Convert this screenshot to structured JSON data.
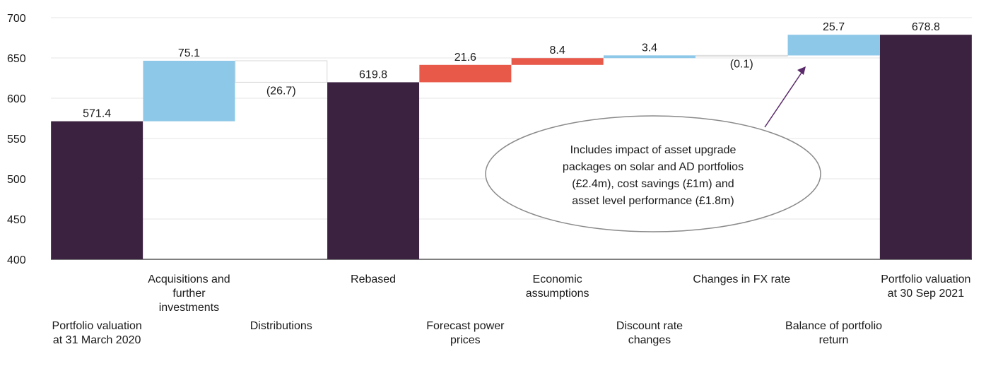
{
  "chart_data": {
    "type": "waterfall",
    "ylim": [
      400,
      700
    ],
    "yticks": [
      400,
      450,
      500,
      550,
      600,
      650,
      700
    ],
    "grid": true,
    "categories": [
      {
        "lines": [
          "Portfolio valuation",
          "at 31 March 2020"
        ],
        "row": "lower"
      },
      {
        "lines": [
          "Acquisitions and",
          "further",
          "investments"
        ],
        "row": "upper"
      },
      {
        "lines": [
          "Distributions"
        ],
        "row": "lower"
      },
      {
        "lines": [
          "Rebased"
        ],
        "row": "upper"
      },
      {
        "lines": [
          "Forecast power",
          "prices"
        ],
        "row": "lower"
      },
      {
        "lines": [
          "Economic",
          "assumptions"
        ],
        "row": "upper"
      },
      {
        "lines": [
          "Discount rate",
          "changes"
        ],
        "row": "lower"
      },
      {
        "lines": [
          "Changes in FX rate"
        ],
        "row": "upper"
      },
      {
        "lines": [
          "Balance of portfolio",
          "return"
        ],
        "row": "lower"
      },
      {
        "lines": [
          "Portfolio valuation",
          "at 30 Sep 2021"
        ],
        "row": "upper"
      }
    ],
    "bars": [
      {
        "kind": "total",
        "start": 400,
        "end": 571.4,
        "label": "571.4",
        "label_pos": "above"
      },
      {
        "kind": "increase",
        "start": 571.4,
        "end": 646.5,
        "label": "75.1",
        "label_pos": "above"
      },
      {
        "kind": "decrease",
        "start": 646.5,
        "end": 619.8,
        "label": "(26.7)",
        "label_pos": "below"
      },
      {
        "kind": "total",
        "start": 400,
        "end": 619.8,
        "label": "619.8",
        "label_pos": "above"
      },
      {
        "kind": "impact",
        "start": 619.8,
        "end": 641.4,
        "label": "21.6",
        "label_pos": "above"
      },
      {
        "kind": "impact",
        "start": 641.4,
        "end": 649.8,
        "label": "8.4",
        "label_pos": "above"
      },
      {
        "kind": "increase",
        "start": 649.8,
        "end": 653.2,
        "label": "3.4",
        "label_pos": "above"
      },
      {
        "kind": "decrease",
        "start": 653.2,
        "end": 653.1,
        "label": "(0.1)",
        "label_pos": "below"
      },
      {
        "kind": "increase",
        "start": 653.1,
        "end": 678.8,
        "label": "25.7",
        "label_pos": "above"
      },
      {
        "kind": "total",
        "start": 400,
        "end": 678.8,
        "label": "678.8",
        "label_pos": "above"
      }
    ],
    "colors": {
      "total": "#3b2240",
      "increase": "#8ec8e8",
      "decrease": "#ffffff",
      "impact": "#e8594a",
      "grid": "#e4e4e4",
      "axis": "#555555"
    },
    "annotation": {
      "lines": [
        "Includes impact of asset upgrade",
        "packages on solar and AD portfolios",
        "(£2.4m), cost savings (£1m) and",
        "asset level performance (£1.8m)"
      ],
      "points_to": "Balance of portfolio return",
      "arrow_color": "#5a2a6a"
    }
  }
}
